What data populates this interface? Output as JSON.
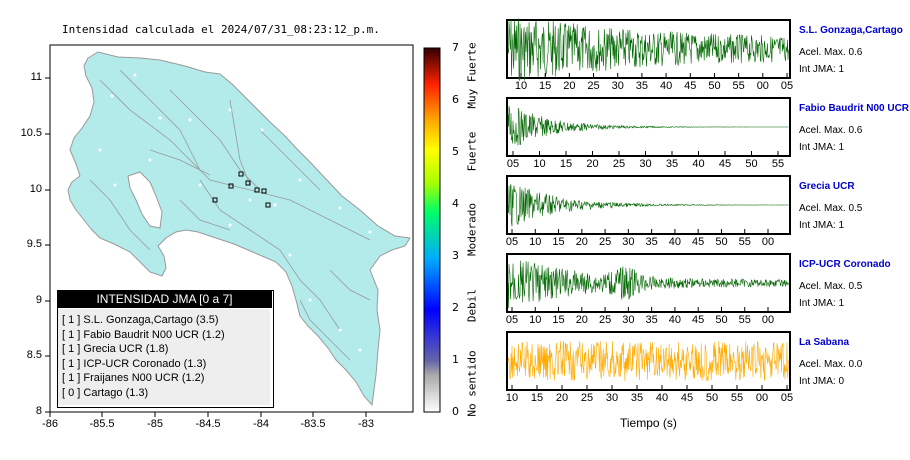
{
  "map": {
    "title": "Intensidad calculada el 2024/07/31_08:23:12_p.m.",
    "lon_ticks": [
      "-86",
      "-85.5",
      "-85",
      "-84.5",
      "-84",
      "-83.5",
      "-83"
    ],
    "lat_ticks": [
      "11",
      "10.5",
      "10",
      "9.5",
      "9",
      "8.5",
      "8"
    ],
    "land_color": "#b3ebeb",
    "legend": {
      "title": "INTENSIDAD JMA [0 a 7]",
      "rows": [
        "[ 1 ]  S.L. Gonzaga,Cartago (3.5)",
        "[ 1 ]  Fabio Baudrit N00 UCR (1.2)",
        "[ 1 ]  Grecia UCR (1.8)",
        "[ 1 ]  ICP-UCR Coronado (1.3)",
        "[ 1 ]  Fraijanes N00 UCR (1.2)",
        "[ 0 ]  Cartago (1.3)"
      ]
    }
  },
  "colorbar": {
    "ticks": [
      "7",
      "6",
      "5",
      "4",
      "3",
      "2",
      "1",
      "0"
    ],
    "categories": [
      "Muy Fuerte",
      "Fuerte",
      "Moderado",
      "Debil",
      "No sentido"
    ]
  },
  "waveforms": {
    "xlabel": "Tiempo (s)",
    "stations": [
      {
        "name": "S.L. Gonzaga,Cartago",
        "acel": "Acel. Max. 0.6",
        "int": "Int JMA: 1",
        "color": "#006600",
        "ticks": [
          "10",
          "15",
          "20",
          "25",
          "30",
          "35",
          "40",
          "45",
          "50",
          "55",
          "00",
          "05"
        ]
      },
      {
        "name": "Fabio Baudrit N00 UCR",
        "acel": "Acel. Max. 0.6",
        "int": "Int JMA: 1",
        "color": "#006600",
        "ticks": [
          "05",
          "10",
          "15",
          "20",
          "25",
          "30",
          "35",
          "40",
          "45",
          "50",
          "55"
        ]
      },
      {
        "name": "Grecia UCR",
        "acel": "Acel. Max. 0.5",
        "int": "Int JMA: 1",
        "color": "#006600",
        "ticks": [
          "05",
          "10",
          "15",
          "20",
          "25",
          "30",
          "35",
          "40",
          "45",
          "50",
          "55",
          "00"
        ]
      },
      {
        "name": "ICP-UCR Coronado",
        "acel": "Acel. Max. 0.5",
        "int": "Int JMA: 1",
        "color": "#006600",
        "ticks": [
          "05",
          "10",
          "15",
          "20",
          "25",
          "30",
          "35",
          "40",
          "45",
          "50",
          "55",
          "00"
        ]
      },
      {
        "name": "La Sabana",
        "acel": "Acel. Max. 0.0",
        "int": "Int JMA: 0",
        "color": "#ffaa00",
        "ticks": [
          "10",
          "15",
          "20",
          "25",
          "30",
          "35",
          "40",
          "45",
          "50",
          "55",
          "00",
          "05"
        ]
      }
    ]
  }
}
